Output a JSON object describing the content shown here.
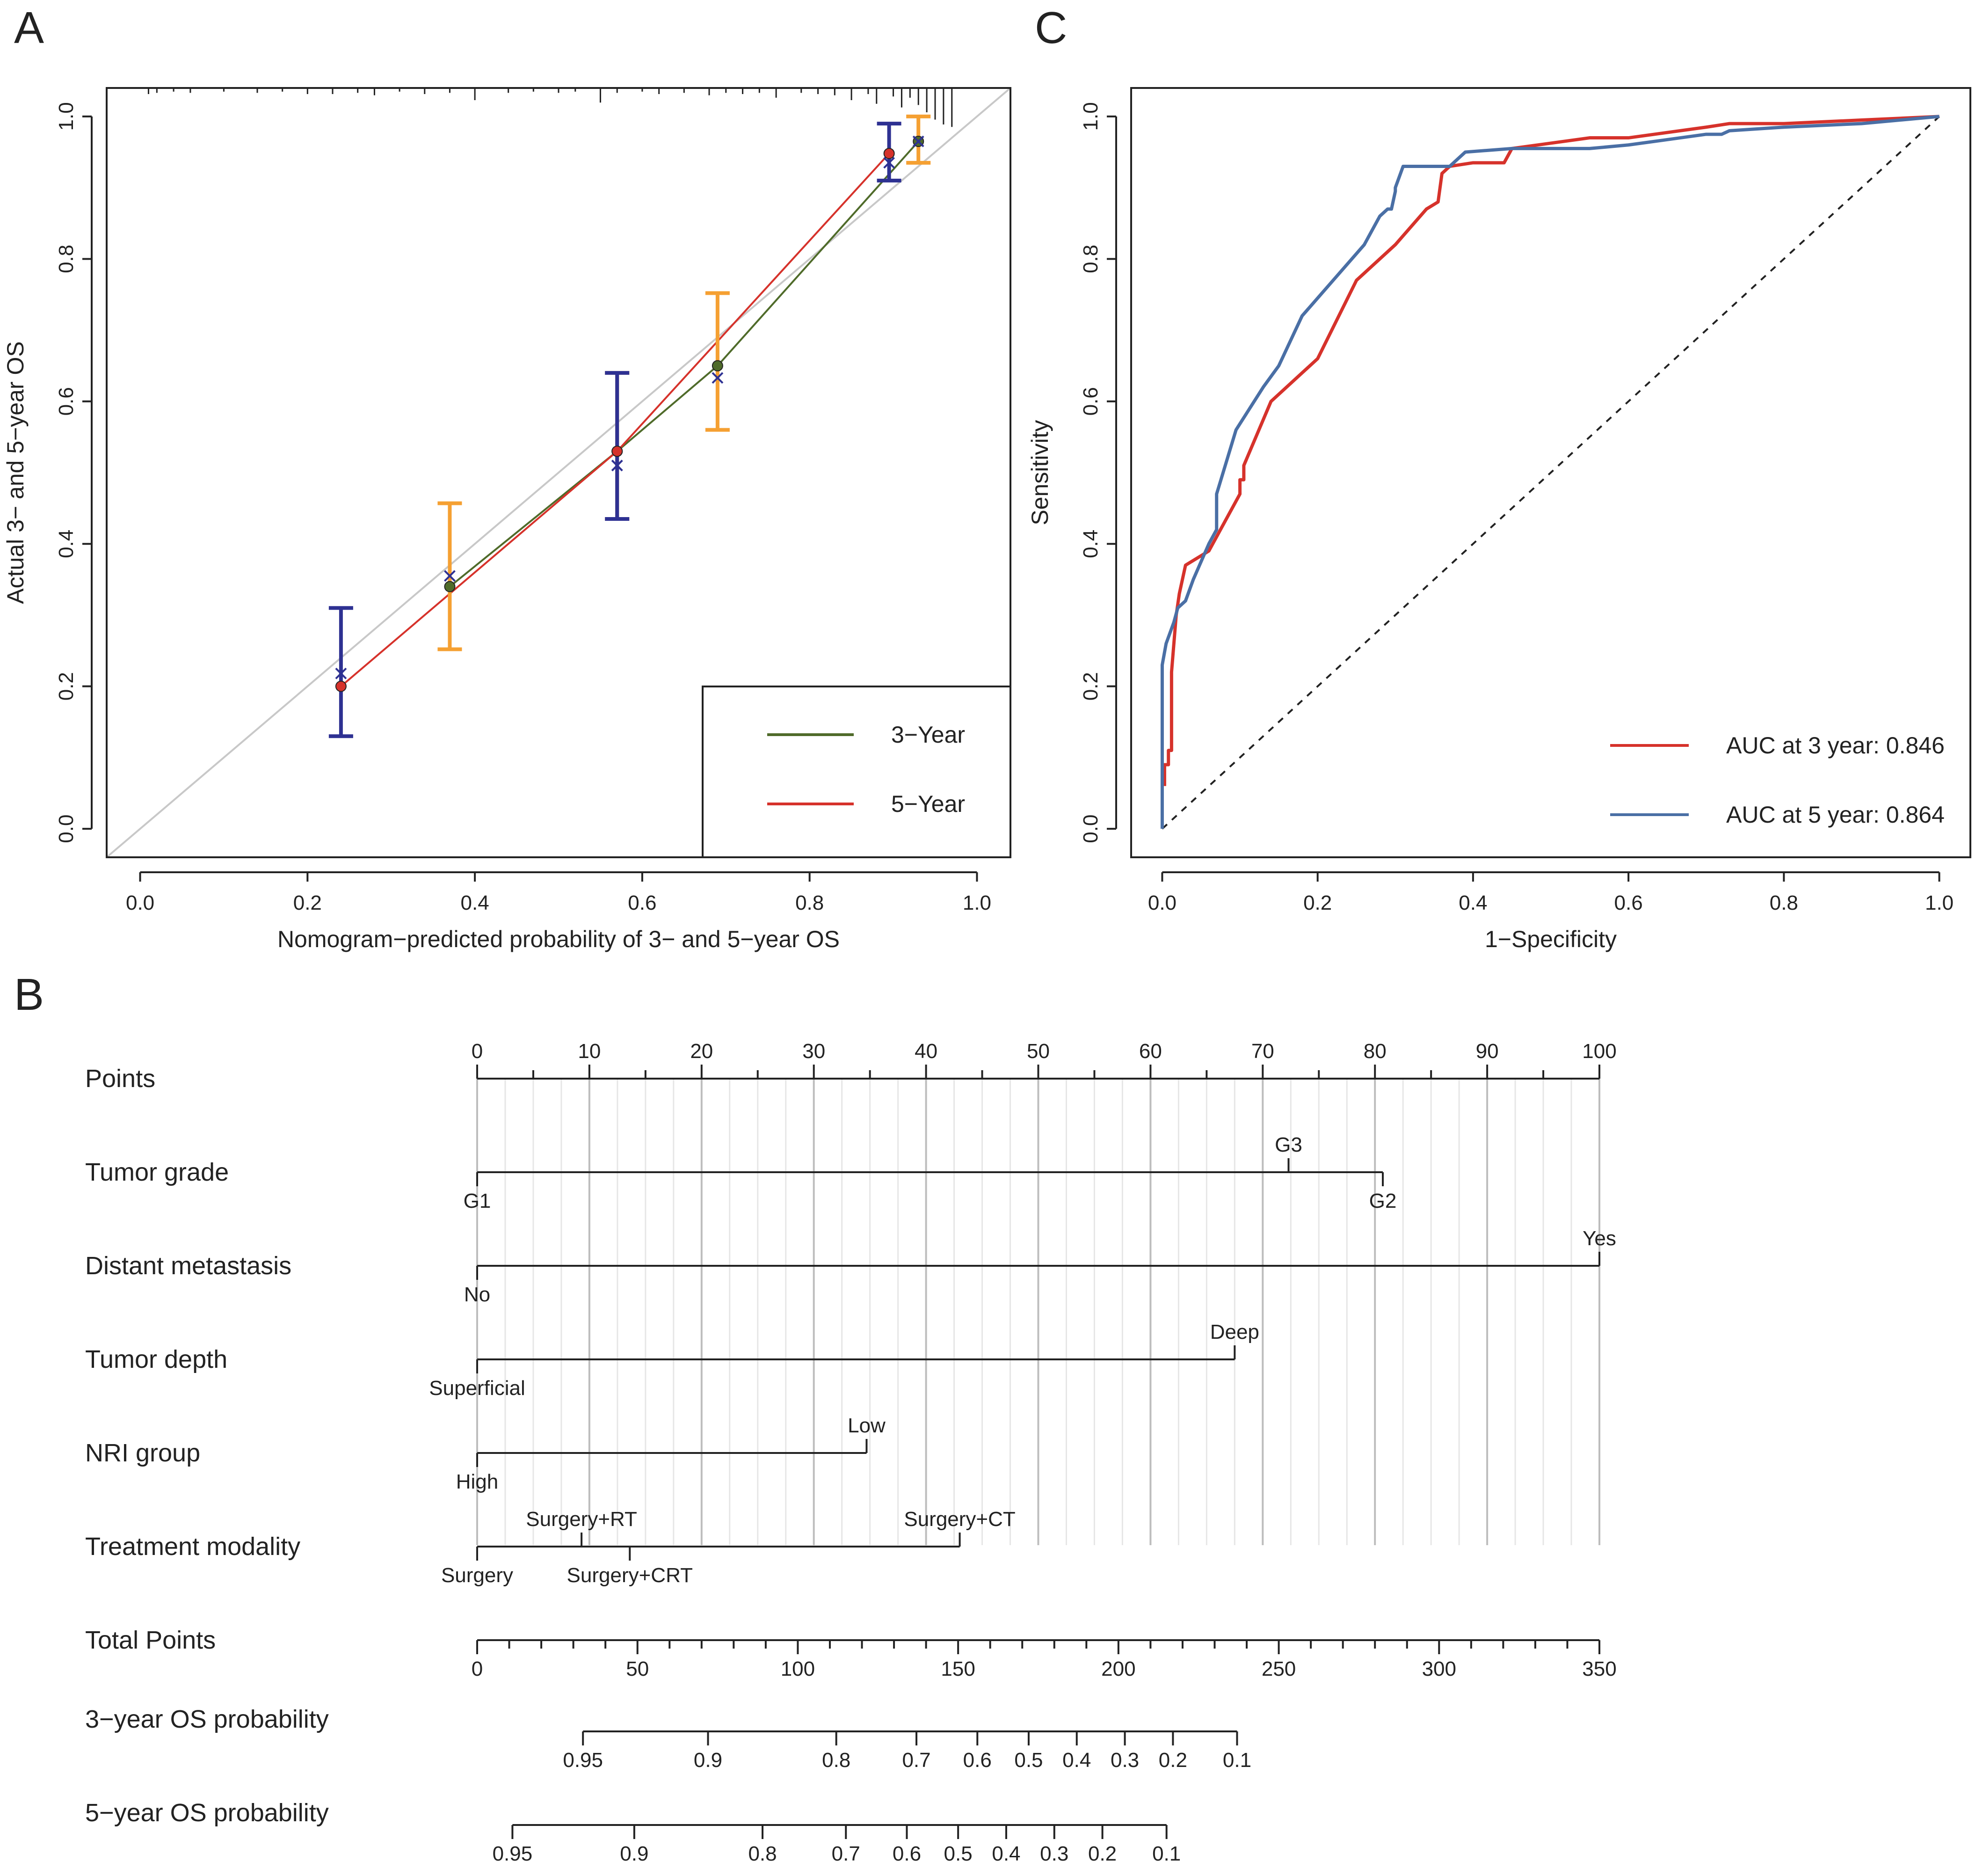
{
  "colors": {
    "red": "#d6322b",
    "blue": "#4a6fa5",
    "olive": "#4f6b2a",
    "orange": "#f5a032",
    "navy": "#2e3192",
    "grey": "#c8c8c8",
    "ink": "#222222"
  },
  "chart_data": [
    {
      "id": "A",
      "type": "line",
      "panel_label": "A",
      "title": "",
      "xlabel": "Nomogram−predicted probability of 3− and 5−year OS",
      "ylabel": "Actual 3− and 5−year OS",
      "xlim": [
        -0.04,
        1.04
      ],
      "ylim": [
        -0.04,
        1.04
      ],
      "xticks": [
        0.0,
        0.2,
        0.4,
        0.6,
        0.8,
        1.0
      ],
      "xtick_labels": [
        "0.0",
        "0.2",
        "0.4",
        "0.6",
        "0.8",
        "1.0"
      ],
      "yticks": [
        0.0,
        0.2,
        0.4,
        0.6,
        0.8,
        1.0
      ],
      "ytick_labels": [
        "0.0",
        "0.2",
        "0.4",
        "0.6",
        "0.8",
        "1.0"
      ],
      "legend_position": "bottom-right",
      "reference_line": {
        "name": "ideal",
        "x": [
          -0.04,
          1.04
        ],
        "y": [
          -0.04,
          1.04
        ]
      },
      "series": [
        {
          "name": "3−Year",
          "color": "#4f6b2a",
          "errorbar_color": "#f5a032",
          "x": [
            0.37,
            0.57,
            0.69,
            0.93
          ],
          "y": [
            0.34,
            0.53,
            0.65,
            0.965
          ],
          "corrected": [
            0.355,
            0.51,
            0.633,
            0.965
          ],
          "ci_low": [
            0.252,
            0.435,
            0.56,
            0.935
          ],
          "ci_high": [
            0.457,
            0.64,
            0.752,
            1.0
          ]
        },
        {
          "name": "5−Year",
          "color": "#d6322b",
          "errorbar_color": "#2e3192",
          "x": [
            0.24,
            0.57,
            0.895
          ],
          "y": [
            0.2,
            0.53,
            0.948
          ],
          "corrected": [
            0.218,
            0.51,
            0.935
          ],
          "ci_low": [
            0.13,
            0.435,
            0.91
          ],
          "ci_high": [
            0.31,
            0.64,
            0.99
          ]
        }
      ],
      "rug_x": [
        0.01,
        0.02,
        0.04,
        0.06,
        0.1,
        0.14,
        0.17,
        0.2,
        0.23,
        0.26,
        0.28,
        0.31,
        0.34,
        0.37,
        0.4,
        0.44,
        0.47,
        0.5,
        0.52,
        0.55,
        0.57,
        0.6,
        0.62,
        0.65,
        0.68,
        0.7,
        0.72,
        0.74,
        0.76,
        0.79,
        0.81,
        0.83,
        0.85,
        0.87,
        0.88,
        0.9,
        0.91,
        0.92,
        0.93,
        0.94,
        0.95,
        0.96,
        0.97
      ],
      "rug_h": [
        0.5,
        0.4,
        0.3,
        0.4,
        0.3,
        0.4,
        0.3,
        0.5,
        0.5,
        0.4,
        0.6,
        0.3,
        0.5,
        0.4,
        1.0,
        0.4,
        0.3,
        0.4,
        0.3,
        1.2,
        0.4,
        0.3,
        0.5,
        0.4,
        0.6,
        0.4,
        0.5,
        0.4,
        0.8,
        0.4,
        0.5,
        0.6,
        1.0,
        0.5,
        1.3,
        0.7,
        1.6,
        0.8,
        1.4,
        2.0,
        2.6,
        3.0,
        3.2
      ]
    },
    {
      "id": "C",
      "type": "line",
      "panel_label": "C",
      "title": "",
      "xlabel": "1−Specificity",
      "ylabel": "Sensitivity",
      "xlim": [
        -0.04,
        1.04
      ],
      "ylim": [
        -0.04,
        1.04
      ],
      "xticks": [
        0.0,
        0.2,
        0.4,
        0.6,
        0.8,
        1.0
      ],
      "xtick_labels": [
        "0.0",
        "0.2",
        "0.4",
        "0.6",
        "0.8",
        "1.0"
      ],
      "yticks": [
        0.0,
        0.2,
        0.4,
        0.6,
        0.8,
        1.0
      ],
      "ytick_labels": [
        "0.0",
        "0.2",
        "0.4",
        "0.6",
        "0.8",
        "1.0"
      ],
      "legend_position": "bottom-right",
      "reference_line": {
        "name": "chance",
        "x": [
          0,
          1
        ],
        "y": [
          0,
          1
        ]
      },
      "series": [
        {
          "name": "AUC at 3 year: 0.846",
          "color": "#d6322b",
          "x": [
            0.003,
            0.003,
            0.008,
            0.008,
            0.012,
            0.012,
            0.018,
            0.022,
            0.03,
            0.06,
            0.08,
            0.1,
            0.1,
            0.105,
            0.105,
            0.14,
            0.2,
            0.25,
            0.3,
            0.34,
            0.355,
            0.36,
            0.37,
            0.4,
            0.44,
            0.45,
            0.55,
            0.6,
            0.7,
            0.73,
            0.8,
            0.9,
            1.0
          ],
          "y": [
            0.06,
            0.09,
            0.09,
            0.11,
            0.11,
            0.22,
            0.3,
            0.33,
            0.37,
            0.39,
            0.43,
            0.47,
            0.49,
            0.49,
            0.51,
            0.6,
            0.66,
            0.77,
            0.82,
            0.87,
            0.88,
            0.92,
            0.93,
            0.935,
            0.935,
            0.955,
            0.97,
            0.97,
            0.985,
            0.99,
            0.99,
            0.995,
            1.0
          ]
        },
        {
          "name": "AUC at 5 year: 0.864",
          "color": "#4a6fa5",
          "x": [
            0.0,
            0.0,
            0.005,
            0.015,
            0.02,
            0.03,
            0.04,
            0.06,
            0.07,
            0.07,
            0.095,
            0.13,
            0.15,
            0.18,
            0.22,
            0.26,
            0.27,
            0.28,
            0.29,
            0.295,
            0.3,
            0.3,
            0.31,
            0.37,
            0.38,
            0.39,
            0.45,
            0.55,
            0.6,
            0.7,
            0.72,
            0.73,
            0.8,
            0.9,
            1.0
          ],
          "y": [
            0.0,
            0.23,
            0.26,
            0.29,
            0.31,
            0.32,
            0.35,
            0.4,
            0.42,
            0.47,
            0.56,
            0.62,
            0.65,
            0.72,
            0.77,
            0.82,
            0.84,
            0.86,
            0.87,
            0.87,
            0.895,
            0.9,
            0.93,
            0.93,
            0.94,
            0.95,
            0.955,
            0.955,
            0.96,
            0.975,
            0.975,
            0.98,
            0.985,
            0.99,
            1.0
          ]
        }
      ]
    },
    {
      "id": "B",
      "type": "nomogram",
      "panel_label": "B",
      "points_axis": {
        "label": "Points",
        "min": 0,
        "max": 100,
        "ticks": [
          0,
          10,
          20,
          30,
          40,
          50,
          60,
          70,
          80,
          90,
          100
        ],
        "tick_labels": [
          "0",
          "10",
          "20",
          "30",
          "40",
          "50",
          "60",
          "70",
          "80",
          "90",
          "100"
        ],
        "minor_step": 5,
        "grid_major_step": 10,
        "grid_minor_step": 2.5
      },
      "variables": [
        {
          "label": "Tumor grade",
          "line_max": 80.7,
          "levels": [
            {
              "name": "G1",
              "points": 0,
              "side": "below"
            },
            {
              "name": "G3",
              "points": 72.3,
              "side": "above"
            },
            {
              "name": "G2",
              "points": 80.7,
              "side": "below"
            }
          ]
        },
        {
          "label": "Distant metastasis",
          "line_max": 100,
          "levels": [
            {
              "name": "No",
              "points": 0,
              "side": "below"
            },
            {
              "name": "Yes",
              "points": 100,
              "side": "above"
            }
          ]
        },
        {
          "label": "Tumor depth",
          "line_max": 67.5,
          "levels": [
            {
              "name": "Superficial",
              "points": 0,
              "side": "below"
            },
            {
              "name": "Deep",
              "points": 67.5,
              "side": "above"
            }
          ]
        },
        {
          "label": "NRI group",
          "line_max": 34.7,
          "levels": [
            {
              "name": "High",
              "points": 0,
              "side": "below"
            },
            {
              "name": "Low",
              "points": 34.7,
              "side": "above"
            }
          ]
        },
        {
          "label": "Treatment modality",
          "line_max": 43,
          "levels": [
            {
              "name": "Surgery",
              "points": 0,
              "side": "below"
            },
            {
              "name": "Surgery+RT",
              "points": 9.3,
              "side": "above"
            },
            {
              "name": "Surgery+CRT",
              "points": 13.6,
              "side": "below"
            },
            {
              "name": "Surgery+CT",
              "points": 43,
              "side": "above"
            }
          ]
        }
      ],
      "total_points_axis": {
        "label": "Total Points",
        "min": 0,
        "max": 350,
        "ticks": [
          0,
          50,
          100,
          150,
          200,
          250,
          300,
          350
        ],
        "tick_labels": [
          "0",
          "50",
          "100",
          "150",
          "200",
          "250",
          "300",
          "350"
        ],
        "minor_step": 10
      },
      "probability_axes": [
        {
          "label": "3−year OS probability",
          "ticks": [
            {
              "label": "0.95",
              "total": 33
            },
            {
              "label": "0.9",
              "total": 72
            },
            {
              "label": "0.8",
              "total": 112
            },
            {
              "label": "0.7",
              "total": 137
            },
            {
              "label": "0.6",
              "total": 156
            },
            {
              "label": "0.5",
              "total": 172
            },
            {
              "label": "0.4",
              "total": 187
            },
            {
              "label": "0.3",
              "total": 202
            },
            {
              "label": "0.2",
              "total": 217
            },
            {
              "label": "0.1",
              "total": 237
            }
          ]
        },
        {
          "label": "5−year OS probability",
          "ticks": [
            {
              "label": "0.95",
              "total": 11
            },
            {
              "label": "0.9",
              "total": 49
            },
            {
              "label": "0.8",
              "total": 89
            },
            {
              "label": "0.7",
              "total": 115
            },
            {
              "label": "0.6",
              "total": 134
            },
            {
              "label": "0.5",
              "total": 150
            },
            {
              "label": "0.4",
              "total": 165
            },
            {
              "label": "0.3",
              "total": 180
            },
            {
              "label": "0.2",
              "total": 195
            },
            {
              "label": "0.1",
              "total": 215
            }
          ]
        }
      ]
    }
  ]
}
